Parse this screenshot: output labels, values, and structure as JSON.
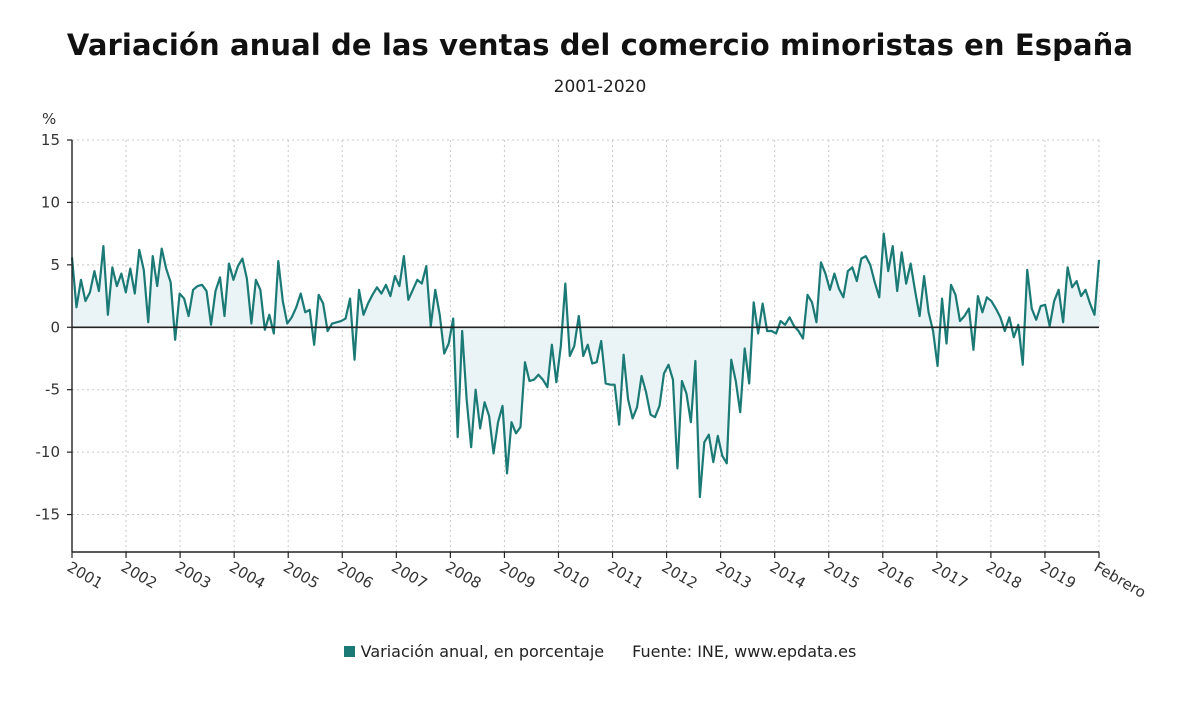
{
  "chart_data": {
    "type": "area",
    "title": "Variación anual de las ventas del comercio minoristas en España",
    "subtitle": "2001-2020",
    "ylabel": "%",
    "xlabel": "",
    "ylim": [
      -18,
      15
    ],
    "yticks": [
      15,
      10,
      5,
      0,
      -5,
      -10,
      -15
    ],
    "ytick_labels": [
      "15",
      "10",
      "5",
      "0",
      "-5",
      "-10",
      "-15"
    ],
    "x_tick_labels": [
      "2001",
      "2002",
      "2003",
      "2004",
      "2005",
      "2006",
      "2007",
      "2008",
      "2009",
      "2010",
      "2011",
      "2012",
      "2013",
      "2014",
      "2015",
      "2016",
      "2017",
      "2018",
      "2019",
      "Febrero"
    ],
    "grid": true,
    "legend_position": "bottom",
    "series": [
      {
        "name": "Variación anual, en porcentaje",
        "color": "#1b7a75",
        "fill": "#eaf4f6",
        "start": "2001-01",
        "end": "2020-02",
        "values": [
          5.6,
          1.6,
          3.8,
          2.1,
          2.8,
          4.5,
          2.9,
          6.5,
          1.0,
          4.8,
          3.3,
          4.3,
          2.8,
          4.7,
          2.7,
          6.2,
          4.6,
          0.4,
          5.7,
          3.3,
          6.3,
          4.7,
          3.6,
          -1.0,
          2.7,
          2.3,
          0.9,
          3.0,
          3.3,
          3.4,
          2.9,
          0.2,
          2.9,
          4.0,
          0.9,
          5.1,
          3.8,
          4.9,
          5.5,
          3.9,
          0.3,
          3.8,
          3.0,
          -0.2,
          1.0,
          -0.5,
          5.3,
          2.1,
          0.3,
          0.8,
          1.6,
          2.7,
          1.2,
          1.4,
          -1.4,
          2.6,
          1.9,
          -0.3,
          0.3,
          0.4,
          0.5,
          0.7,
          2.3,
          -2.6,
          3.0,
          1.0,
          1.9,
          2.6,
          3.2,
          2.7,
          3.4,
          2.5,
          4.1,
          3.3,
          5.7,
          2.2,
          3.0,
          3.8,
          3.5,
          4.9,
          0.1,
          3.0,
          1.0,
          -2.1,
          -1.3,
          0.7,
          -8.8,
          -0.3,
          -5.8,
          -9.6,
          -5.0,
          -8.1,
          -6.0,
          -7.1,
          -10.1,
          -7.6,
          -6.3,
          -11.7,
          -7.6,
          -8.5,
          -8.0,
          -2.8,
          -4.3,
          -4.2,
          -3.8,
          -4.2,
          -4.8,
          -1.4,
          -4.4,
          -1.5,
          3.5,
          -2.3,
          -1.5,
          0.9,
          -2.3,
          -1.4,
          -2.9,
          -2.8,
          -1.1,
          -4.5,
          -4.6,
          -4.6,
          -7.8,
          -2.2,
          -5.8,
          -7.3,
          -6.4,
          -3.9,
          -5.2,
          -7.0,
          -7.2,
          -6.3,
          -3.7,
          -3.0,
          -4.2,
          -11.3,
          -4.3,
          -5.3,
          -7.6,
          -2.7,
          -13.6,
          -9.2,
          -8.6,
          -10.8,
          -8.7,
          -10.3,
          -10.9,
          -2.6,
          -4.3,
          -6.8,
          -1.7,
          -4.5,
          2.0,
          -0.5,
          1.9,
          -0.3,
          -0.3,
          -0.5,
          0.5,
          0.2,
          0.8,
          0.1,
          -0.3,
          -0.9,
          2.6,
          2.0,
          0.4,
          5.2,
          4.3,
          3.0,
          4.3,
          3.1,
          2.4,
          4.5,
          4.8,
          3.7,
          5.5,
          5.7,
          5.0,
          3.6,
          2.4,
          7.5,
          4.5,
          6.5,
          2.9,
          6.0,
          3.5,
          5.1,
          2.9,
          0.9,
          4.1,
          1.2,
          -0.3,
          -3.1,
          2.3,
          -1.3,
          3.4,
          2.6,
          0.5,
          0.9,
          1.5,
          -1.8,
          2.5,
          1.2,
          2.4,
          2.1,
          1.5,
          0.8,
          -0.3,
          0.8,
          -0.8,
          0.2,
          -3.0,
          4.6,
          1.5,
          0.6,
          1.7,
          1.8,
          0.1,
          2.1,
          3.0,
          0.4,
          4.8,
          3.2,
          3.7,
          2.5,
          3.0,
          1.9,
          1.0,
          5.4
        ]
      }
    ]
  },
  "legend": {
    "swatch_color": "#1b7a75",
    "series_label": "Variación anual, en porcentaje",
    "source": "Fuente: INE, www.epdata.es"
  }
}
